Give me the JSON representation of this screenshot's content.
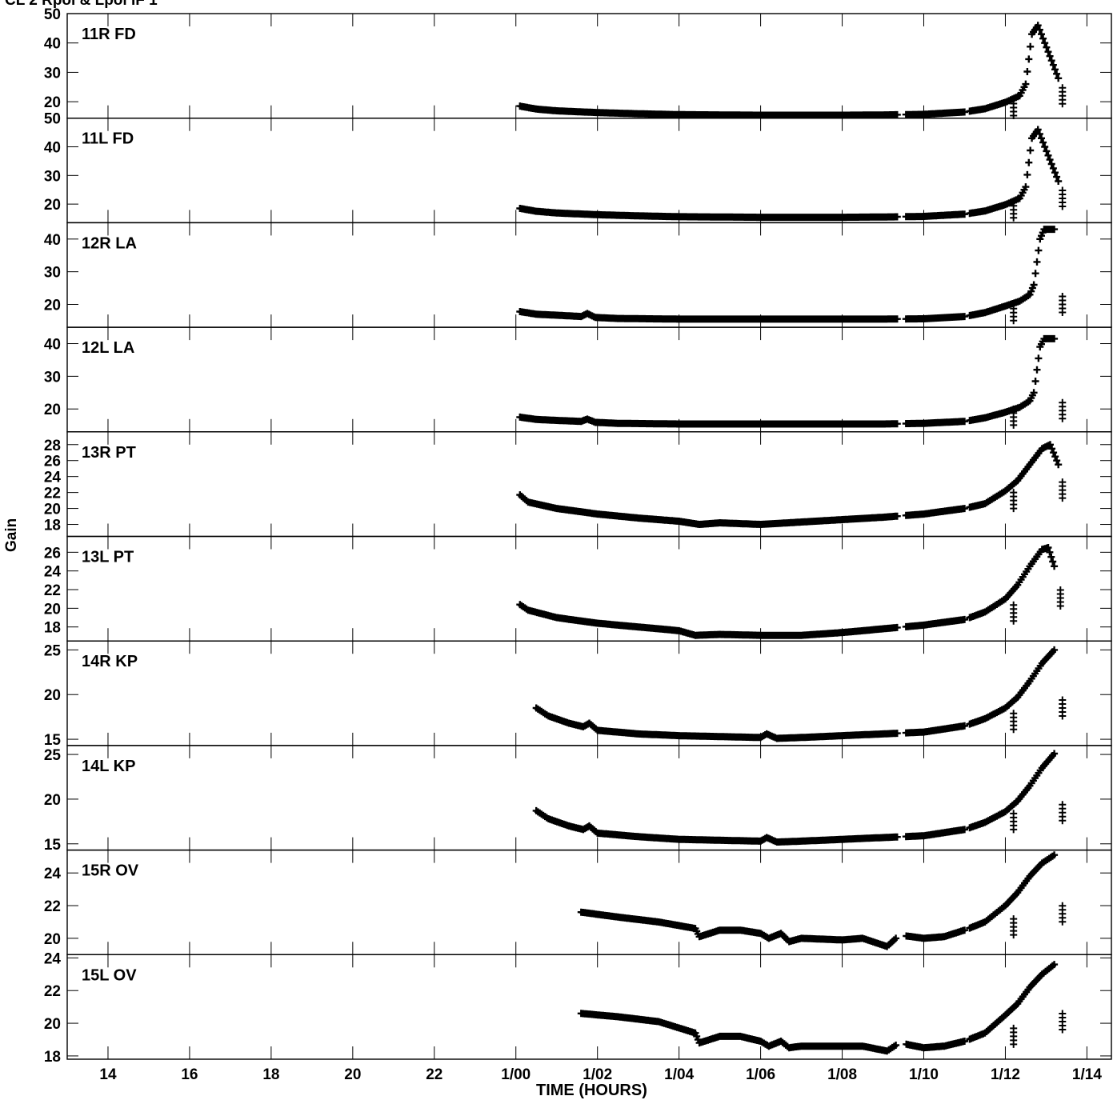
{
  "chart_data": {
    "type": "scatter",
    "title": "CL 2  Rpol & Lpol  IF 1",
    "xlabel": "TIME (HOURS)",
    "ylabel": "Gain",
    "marker": "+",
    "grid": false,
    "legend": "none",
    "xlim": [
      13.0,
      38.6
    ],
    "xticks": [
      {
        "value": 14,
        "label": "14"
      },
      {
        "value": 16,
        "label": "16"
      },
      {
        "value": 18,
        "label": "18"
      },
      {
        "value": 20,
        "label": "20"
      },
      {
        "value": 22,
        "label": "22"
      },
      {
        "value": 24,
        "label": "1/00"
      },
      {
        "value": 26,
        "label": "1/02"
      },
      {
        "value": 28,
        "label": "1/04"
      },
      {
        "value": 30,
        "label": "1/06"
      },
      {
        "value": 32,
        "label": "1/08"
      },
      {
        "value": 34,
        "label": "1/10"
      },
      {
        "value": 36,
        "label": "1/12"
      },
      {
        "value": 38,
        "label": "1/14"
      }
    ],
    "panels": [
      {
        "label": "11R FD",
        "ylim": [
          14.4,
          50
        ],
        "yticks": [
          20,
          30,
          40,
          50
        ],
        "x_start": 24.1,
        "points": [
          [
            24.1,
            18.5
          ],
          [
            24.5,
            17.5
          ],
          [
            25,
            16.9
          ],
          [
            26,
            16.3
          ],
          [
            27,
            15.9
          ],
          [
            28,
            15.6
          ],
          [
            29,
            15.5
          ],
          [
            30,
            15.4
          ],
          [
            31,
            15.4
          ],
          [
            32,
            15.4
          ],
          [
            33,
            15.5
          ],
          [
            34,
            15.7
          ],
          [
            35,
            16.5
          ],
          [
            35.5,
            17.6
          ],
          [
            36,
            19.8
          ],
          [
            36.35,
            22
          ],
          [
            36.5,
            26
          ],
          [
            36.65,
            43
          ],
          [
            36.8,
            46
          ],
          [
            37.3,
            28
          ]
        ],
        "outliers": [
          [
            36.2,
            18
          ],
          [
            37.4,
            22
          ]
        ]
      },
      {
        "label": "11L FD",
        "ylim": [
          13.5,
          50
        ],
        "yticks": [
          20,
          30,
          40,
          50
        ],
        "x_start": 24.1,
        "points": [
          [
            24.1,
            18.5
          ],
          [
            24.5,
            17.5
          ],
          [
            25,
            16.9
          ],
          [
            26,
            16.3
          ],
          [
            27,
            15.9
          ],
          [
            28,
            15.6
          ],
          [
            29,
            15.5
          ],
          [
            30,
            15.4
          ],
          [
            31,
            15.4
          ],
          [
            32,
            15.4
          ],
          [
            33,
            15.5
          ],
          [
            34,
            15.7
          ],
          [
            35,
            16.5
          ],
          [
            35.5,
            17.6
          ],
          [
            36,
            19.8
          ],
          [
            36.35,
            22
          ],
          [
            36.5,
            26
          ],
          [
            36.65,
            43
          ],
          [
            36.8,
            46
          ],
          [
            37.3,
            28
          ]
        ],
        "outliers": [
          [
            36.2,
            18
          ],
          [
            37.4,
            22
          ]
        ]
      },
      {
        "label": "12R LA",
        "ylim": [
          13,
          45
        ],
        "yticks": [
          20,
          30,
          40
        ],
        "x_start": 24.1,
        "points": [
          [
            24.1,
            17.8
          ],
          [
            24.5,
            17.0
          ],
          [
            25,
            16.7
          ],
          [
            25.6,
            16.3
          ],
          [
            25.75,
            17.2
          ],
          [
            25.95,
            16.0
          ],
          [
            26.5,
            15.7
          ],
          [
            28,
            15.5
          ],
          [
            30,
            15.5
          ],
          [
            32,
            15.5
          ],
          [
            33,
            15.5
          ],
          [
            34,
            15.6
          ],
          [
            35,
            16.3
          ],
          [
            35.5,
            17.5
          ],
          [
            36,
            19.5
          ],
          [
            36.35,
            21
          ],
          [
            36.6,
            23
          ],
          [
            36.7,
            26
          ],
          [
            36.85,
            40
          ],
          [
            36.95,
            43
          ],
          [
            37.2,
            43
          ]
        ],
        "outliers": [
          [
            36.2,
            17.5
          ],
          [
            37.4,
            20
          ]
        ]
      },
      {
        "label": "12L LA",
        "ylim": [
          13,
          45
        ],
        "yticks": [
          20,
          30,
          40
        ],
        "x_start": 24.1,
        "points": [
          [
            24.1,
            17.5
          ],
          [
            24.5,
            16.8
          ],
          [
            25,
            16.5
          ],
          [
            25.6,
            16.2
          ],
          [
            25.75,
            16.9
          ],
          [
            25.95,
            15.9
          ],
          [
            26.5,
            15.6
          ],
          [
            28,
            15.4
          ],
          [
            30,
            15.4
          ],
          [
            32,
            15.4
          ],
          [
            33,
            15.4
          ],
          [
            34,
            15.6
          ],
          [
            35,
            16.2
          ],
          [
            35.5,
            17.3
          ],
          [
            36,
            19.0
          ],
          [
            36.35,
            20.5
          ],
          [
            36.6,
            22.5
          ],
          [
            36.7,
            25
          ],
          [
            36.85,
            39
          ],
          [
            36.95,
            41.5
          ],
          [
            37.2,
            41.5
          ]
        ],
        "outliers": [
          [
            36.2,
            17.5
          ],
          [
            37.4,
            19.5
          ]
        ]
      },
      {
        "label": "13R PT",
        "ylim": [
          16.5,
          29.6
        ],
        "yticks": [
          18,
          20,
          22,
          24,
          26,
          28
        ],
        "x_start": 24.1,
        "points": [
          [
            24.1,
            21.7
          ],
          [
            24.3,
            20.8
          ],
          [
            25,
            20.0
          ],
          [
            26,
            19.3
          ],
          [
            27,
            18.8
          ],
          [
            28,
            18.4
          ],
          [
            28.5,
            18.0
          ],
          [
            29,
            18.2
          ],
          [
            30,
            18.0
          ],
          [
            31,
            18.3
          ],
          [
            32,
            18.6
          ],
          [
            33,
            18.9
          ],
          [
            34,
            19.3
          ],
          [
            35,
            20.0
          ],
          [
            35.5,
            20.6
          ],
          [
            36,
            22.2
          ],
          [
            36.3,
            23.5
          ],
          [
            36.6,
            25.5
          ],
          [
            36.9,
            27.5
          ],
          [
            37.1,
            28.0
          ],
          [
            37.3,
            25.5
          ]
        ],
        "outliers": [
          [
            36.2,
            21
          ],
          [
            37.4,
            22.3
          ]
        ]
      },
      {
        "label": "13L PT",
        "ylim": [
          16.5,
          27.7
        ],
        "yticks": [
          18,
          20,
          22,
          24,
          26
        ],
        "x_start": 24.1,
        "points": [
          [
            24.1,
            20.4
          ],
          [
            24.3,
            19.8
          ],
          [
            25,
            19.0
          ],
          [
            26,
            18.4
          ],
          [
            27,
            18.0
          ],
          [
            28,
            17.6
          ],
          [
            28.4,
            17.1
          ],
          [
            29,
            17.2
          ],
          [
            30,
            17.1
          ],
          [
            31,
            17.1
          ],
          [
            32,
            17.4
          ],
          [
            33,
            17.8
          ],
          [
            34,
            18.2
          ],
          [
            35,
            18.8
          ],
          [
            35.5,
            19.6
          ],
          [
            36,
            21.0
          ],
          [
            36.3,
            22.5
          ],
          [
            36.6,
            24.5
          ],
          [
            36.9,
            26.3
          ],
          [
            37.05,
            26.5
          ],
          [
            37.2,
            24.5
          ]
        ],
        "outliers": [
          [
            36.2,
            19.5
          ],
          [
            37.35,
            21.1
          ]
        ]
      },
      {
        "label": "14R KP",
        "ylim": [
          14.3,
          26
        ],
        "yticks": [
          15,
          20,
          25
        ],
        "x_start": 24.5,
        "points": [
          [
            24.5,
            18.5
          ],
          [
            24.8,
            17.6
          ],
          [
            25.3,
            16.8
          ],
          [
            25.65,
            16.4
          ],
          [
            25.8,
            16.8
          ],
          [
            26,
            16.0
          ],
          [
            27,
            15.6
          ],
          [
            28,
            15.4
          ],
          [
            29,
            15.3
          ],
          [
            30,
            15.2
          ],
          [
            30.15,
            15.6
          ],
          [
            30.4,
            15.1
          ],
          [
            31,
            15.2
          ],
          [
            32,
            15.4
          ],
          [
            33,
            15.6
          ],
          [
            34,
            15.8
          ],
          [
            35,
            16.5
          ],
          [
            35.5,
            17.3
          ],
          [
            36,
            18.5
          ],
          [
            36.3,
            19.7
          ],
          [
            36.6,
            21.5
          ],
          [
            36.9,
            23.5
          ],
          [
            37.2,
            25.0
          ]
        ],
        "outliers": [
          [
            36.2,
            17
          ],
          [
            37.4,
            18.5
          ]
        ]
      },
      {
        "label": "14L KP",
        "ylim": [
          14.3,
          26
        ],
        "yticks": [
          15,
          20,
          25
        ],
        "x_start": 24.5,
        "points": [
          [
            24.5,
            18.7
          ],
          [
            24.8,
            17.8
          ],
          [
            25.3,
            17.0
          ],
          [
            25.65,
            16.6
          ],
          [
            25.8,
            17.0
          ],
          [
            26,
            16.2
          ],
          [
            27,
            15.8
          ],
          [
            28,
            15.5
          ],
          [
            29,
            15.4
          ],
          [
            30,
            15.3
          ],
          [
            30.15,
            15.7
          ],
          [
            30.4,
            15.2
          ],
          [
            31,
            15.3
          ],
          [
            32,
            15.5
          ],
          [
            33,
            15.7
          ],
          [
            34,
            15.9
          ],
          [
            35,
            16.6
          ],
          [
            35.5,
            17.4
          ],
          [
            36,
            18.6
          ],
          [
            36.3,
            19.8
          ],
          [
            36.6,
            21.5
          ],
          [
            36.9,
            23.5
          ],
          [
            37.2,
            25.1
          ]
        ],
        "outliers": [
          [
            36.2,
            17.5
          ],
          [
            37.4,
            18.5
          ]
        ]
      },
      {
        "label": "15R OV",
        "ylim": [
          19.0,
          25.4
        ],
        "yticks": [
          20,
          22,
          24
        ],
        "x_start": 25.6,
        "points": [
          [
            25.6,
            21.6
          ],
          [
            26.5,
            21.3
          ],
          [
            27.5,
            21.0
          ],
          [
            28.4,
            20.6
          ],
          [
            28.5,
            20.1
          ],
          [
            29,
            20.5
          ],
          [
            29.5,
            20.5
          ],
          [
            30,
            20.3
          ],
          [
            30.2,
            20.0
          ],
          [
            30.5,
            20.3
          ],
          [
            30.7,
            19.8
          ],
          [
            31,
            20.0
          ],
          [
            32,
            19.9
          ],
          [
            32.5,
            20.0
          ],
          [
            33.1,
            19.5
          ],
          [
            33.4,
            20.2
          ],
          [
            34,
            20.0
          ],
          [
            34.5,
            20.1
          ],
          [
            35,
            20.5
          ],
          [
            35.5,
            21.0
          ],
          [
            36,
            22.0
          ],
          [
            36.3,
            22.8
          ],
          [
            36.6,
            23.8
          ],
          [
            36.9,
            24.6
          ],
          [
            37.2,
            25.1
          ]
        ],
        "outliers": [
          [
            36.2,
            20.7
          ],
          [
            37.4,
            21.5
          ]
        ]
      },
      {
        "label": "15L OV",
        "ylim": [
          17.8,
          24.2
        ],
        "yticks": [
          18,
          20,
          22,
          24
        ],
        "x_start": 25.6,
        "points": [
          [
            25.6,
            20.6
          ],
          [
            26.5,
            20.4
          ],
          [
            27.5,
            20.1
          ],
          [
            28.4,
            19.4
          ],
          [
            28.5,
            18.8
          ],
          [
            29,
            19.2
          ],
          [
            29.5,
            19.2
          ],
          [
            30,
            18.9
          ],
          [
            30.2,
            18.6
          ],
          [
            30.5,
            18.9
          ],
          [
            30.7,
            18.5
          ],
          [
            31,
            18.6
          ],
          [
            32,
            18.6
          ],
          [
            32.5,
            18.6
          ],
          [
            33.1,
            18.3
          ],
          [
            33.4,
            18.8
          ],
          [
            34,
            18.5
          ],
          [
            34.5,
            18.6
          ],
          [
            35,
            18.9
          ],
          [
            35.5,
            19.4
          ],
          [
            36,
            20.5
          ],
          [
            36.3,
            21.2
          ],
          [
            36.6,
            22.2
          ],
          [
            36.9,
            23.0
          ],
          [
            37.2,
            23.6
          ]
        ],
        "outliers": [
          [
            36.2,
            19.2
          ],
          [
            37.4,
            20.1
          ]
        ]
      }
    ]
  }
}
